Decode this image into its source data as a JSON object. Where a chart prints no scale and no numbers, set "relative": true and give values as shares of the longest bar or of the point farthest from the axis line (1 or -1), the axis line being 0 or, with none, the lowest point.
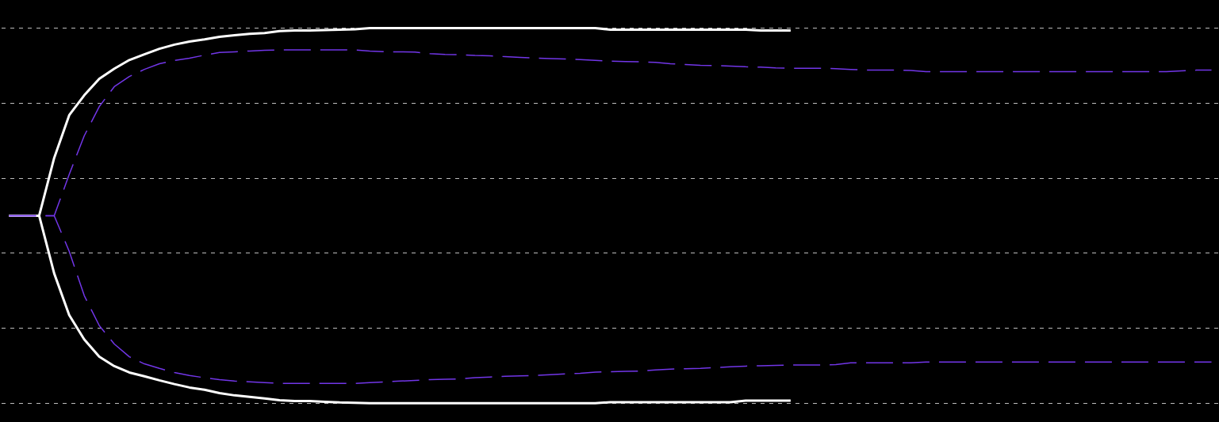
{
  "chart_data": {
    "type": "line",
    "relative": true,
    "grid": "y",
    "categories": [
      null,
      null,
      null,
      null,
      null,
      null,
      null,
      null,
      null,
      null,
      null,
      null,
      null,
      null,
      null,
      null,
      null,
      null,
      null,
      null,
      null,
      null,
      null,
      null,
      null,
      null,
      null,
      null,
      null,
      null,
      null,
      null,
      null,
      null,
      null,
      null,
      null,
      null,
      null,
      null,
      null,
      null,
      null,
      null,
      null,
      null,
      null,
      null,
      null,
      null,
      null,
      null,
      null,
      null,
      null,
      null,
      null,
      null,
      null,
      null,
      null,
      null,
      null,
      null,
      null,
      null,
      null,
      null,
      null,
      null,
      null,
      null,
      null,
      null,
      null,
      null,
      null,
      null,
      null,
      null,
      null
    ],
    "series": [
      {
        "color": "#ffffff",
        "line_style": "solid",
        "values": [
          0.5,
          0.5,
          0.5,
          0.654,
          0.768,
          0.821,
          0.865,
          0.892,
          0.915,
          0.93,
          0.945,
          0.956,
          0.964,
          0.97,
          0.977,
          0.981,
          0.985,
          0.987,
          0.992,
          0.994,
          0.994,
          0.995,
          0.996,
          0.997,
          1,
          1,
          1,
          1,
          1,
          1,
          1,
          1,
          1,
          1,
          1,
          1,
          1,
          1,
          1,
          1,
          0.996,
          0.996,
          0.996,
          0.996,
          0.996,
          0.996,
          0.996,
          0.996,
          0.996,
          0.996,
          0.994,
          0.994,
          0.994,
          null,
          null,
          null,
          null,
          null,
          null,
          null,
          null,
          null,
          null,
          null,
          null,
          null,
          null,
          null,
          null,
          null,
          null,
          null,
          null,
          null,
          null,
          null,
          null,
          null,
          null,
          null,
          null
        ]
      },
      {
        "color": "#ffffff",
        "line_style": "solid",
        "values": [
          0.5,
          0.5,
          0.5,
          0.346,
          0.235,
          0.17,
          0.124,
          0.099,
          0.082,
          0.072,
          0.061,
          0.051,
          0.042,
          0.036,
          0.027,
          0.021,
          0.017,
          0.013,
          0.008,
          0.006,
          0.006,
          0.004,
          0.002,
          0.001,
          0,
          0,
          0,
          0,
          0,
          0,
          0,
          0,
          0,
          0,
          0,
          0,
          0,
          0,
          0,
          0,
          0.003,
          0.003,
          0.003,
          0.003,
          0.003,
          0.003,
          0.003,
          0.003,
          0.003,
          0.007,
          0.007,
          0.007,
          0.007,
          null,
          null,
          null,
          null,
          null,
          null,
          null,
          null,
          null,
          null,
          null,
          null,
          null,
          null,
          null,
          null,
          null,
          null,
          null,
          null,
          null,
          null,
          null,
          null,
          null,
          null,
          null,
          null
        ]
      },
      {
        "color": "#7236e8",
        "line_style": "dashed",
        "values": [
          0.5,
          0.5,
          0.5,
          0.5,
          0.61,
          0.713,
          0.791,
          0.844,
          0.871,
          0.89,
          0.905,
          0.914,
          0.92,
          0.928,
          0.935,
          0.937,
          0.939,
          0.941,
          0.942,
          0.942,
          0.942,
          0.942,
          0.942,
          0.942,
          0.939,
          0.937,
          0.937,
          0.936,
          0.932,
          0.93,
          0.929,
          0.927,
          0.926,
          0.924,
          0.922,
          0.92,
          0.919,
          0.918,
          0.916,
          0.914,
          0.912,
          0.911,
          0.91,
          0.909,
          0.905,
          0.903,
          0.901,
          0.9,
          0.899,
          0.897,
          0.896,
          0.894,
          0.893,
          0.893,
          0.893,
          0.892,
          0.89,
          0.888,
          0.888,
          0.888,
          0.887,
          0.884,
          0.884,
          0.884,
          0.884,
          0.884,
          0.884,
          0.884,
          0.884,
          0.884,
          0.884,
          0.884,
          0.884,
          0.884,
          0.884,
          0.884,
          0.884,
          0.884,
          0.886,
          0.888,
          0.888
        ]
      },
      {
        "color": "#7236e8",
        "line_style": "dashed",
        "values": [
          0.5,
          0.5,
          0.5,
          0.5,
          0.405,
          0.287,
          0.207,
          0.158,
          0.124,
          0.105,
          0.093,
          0.082,
          0.074,
          0.068,
          0.063,
          0.059,
          0.057,
          0.055,
          0.053,
          0.053,
          0.053,
          0.053,
          0.053,
          0.053,
          0.055,
          0.057,
          0.059,
          0.061,
          0.063,
          0.064,
          0.065,
          0.068,
          0.07,
          0.072,
          0.073,
          0.074,
          0.076,
          0.078,
          0.08,
          0.083,
          0.084,
          0.085,
          0.086,
          0.089,
          0.091,
          0.092,
          0.093,
          0.095,
          0.097,
          0.099,
          0.1,
          0.101,
          0.102,
          0.102,
          0.102,
          0.103,
          0.108,
          0.108,
          0.108,
          0.108,
          0.108,
          0.11,
          0.11,
          0.11,
          0.11,
          0.11,
          0.11,
          0.11,
          0.11,
          0.11,
          0.11,
          0.11,
          0.11,
          0.11,
          0.11,
          0.11,
          0.11,
          0.11,
          0.11,
          0.11,
          0.11
        ]
      }
    ]
  }
}
